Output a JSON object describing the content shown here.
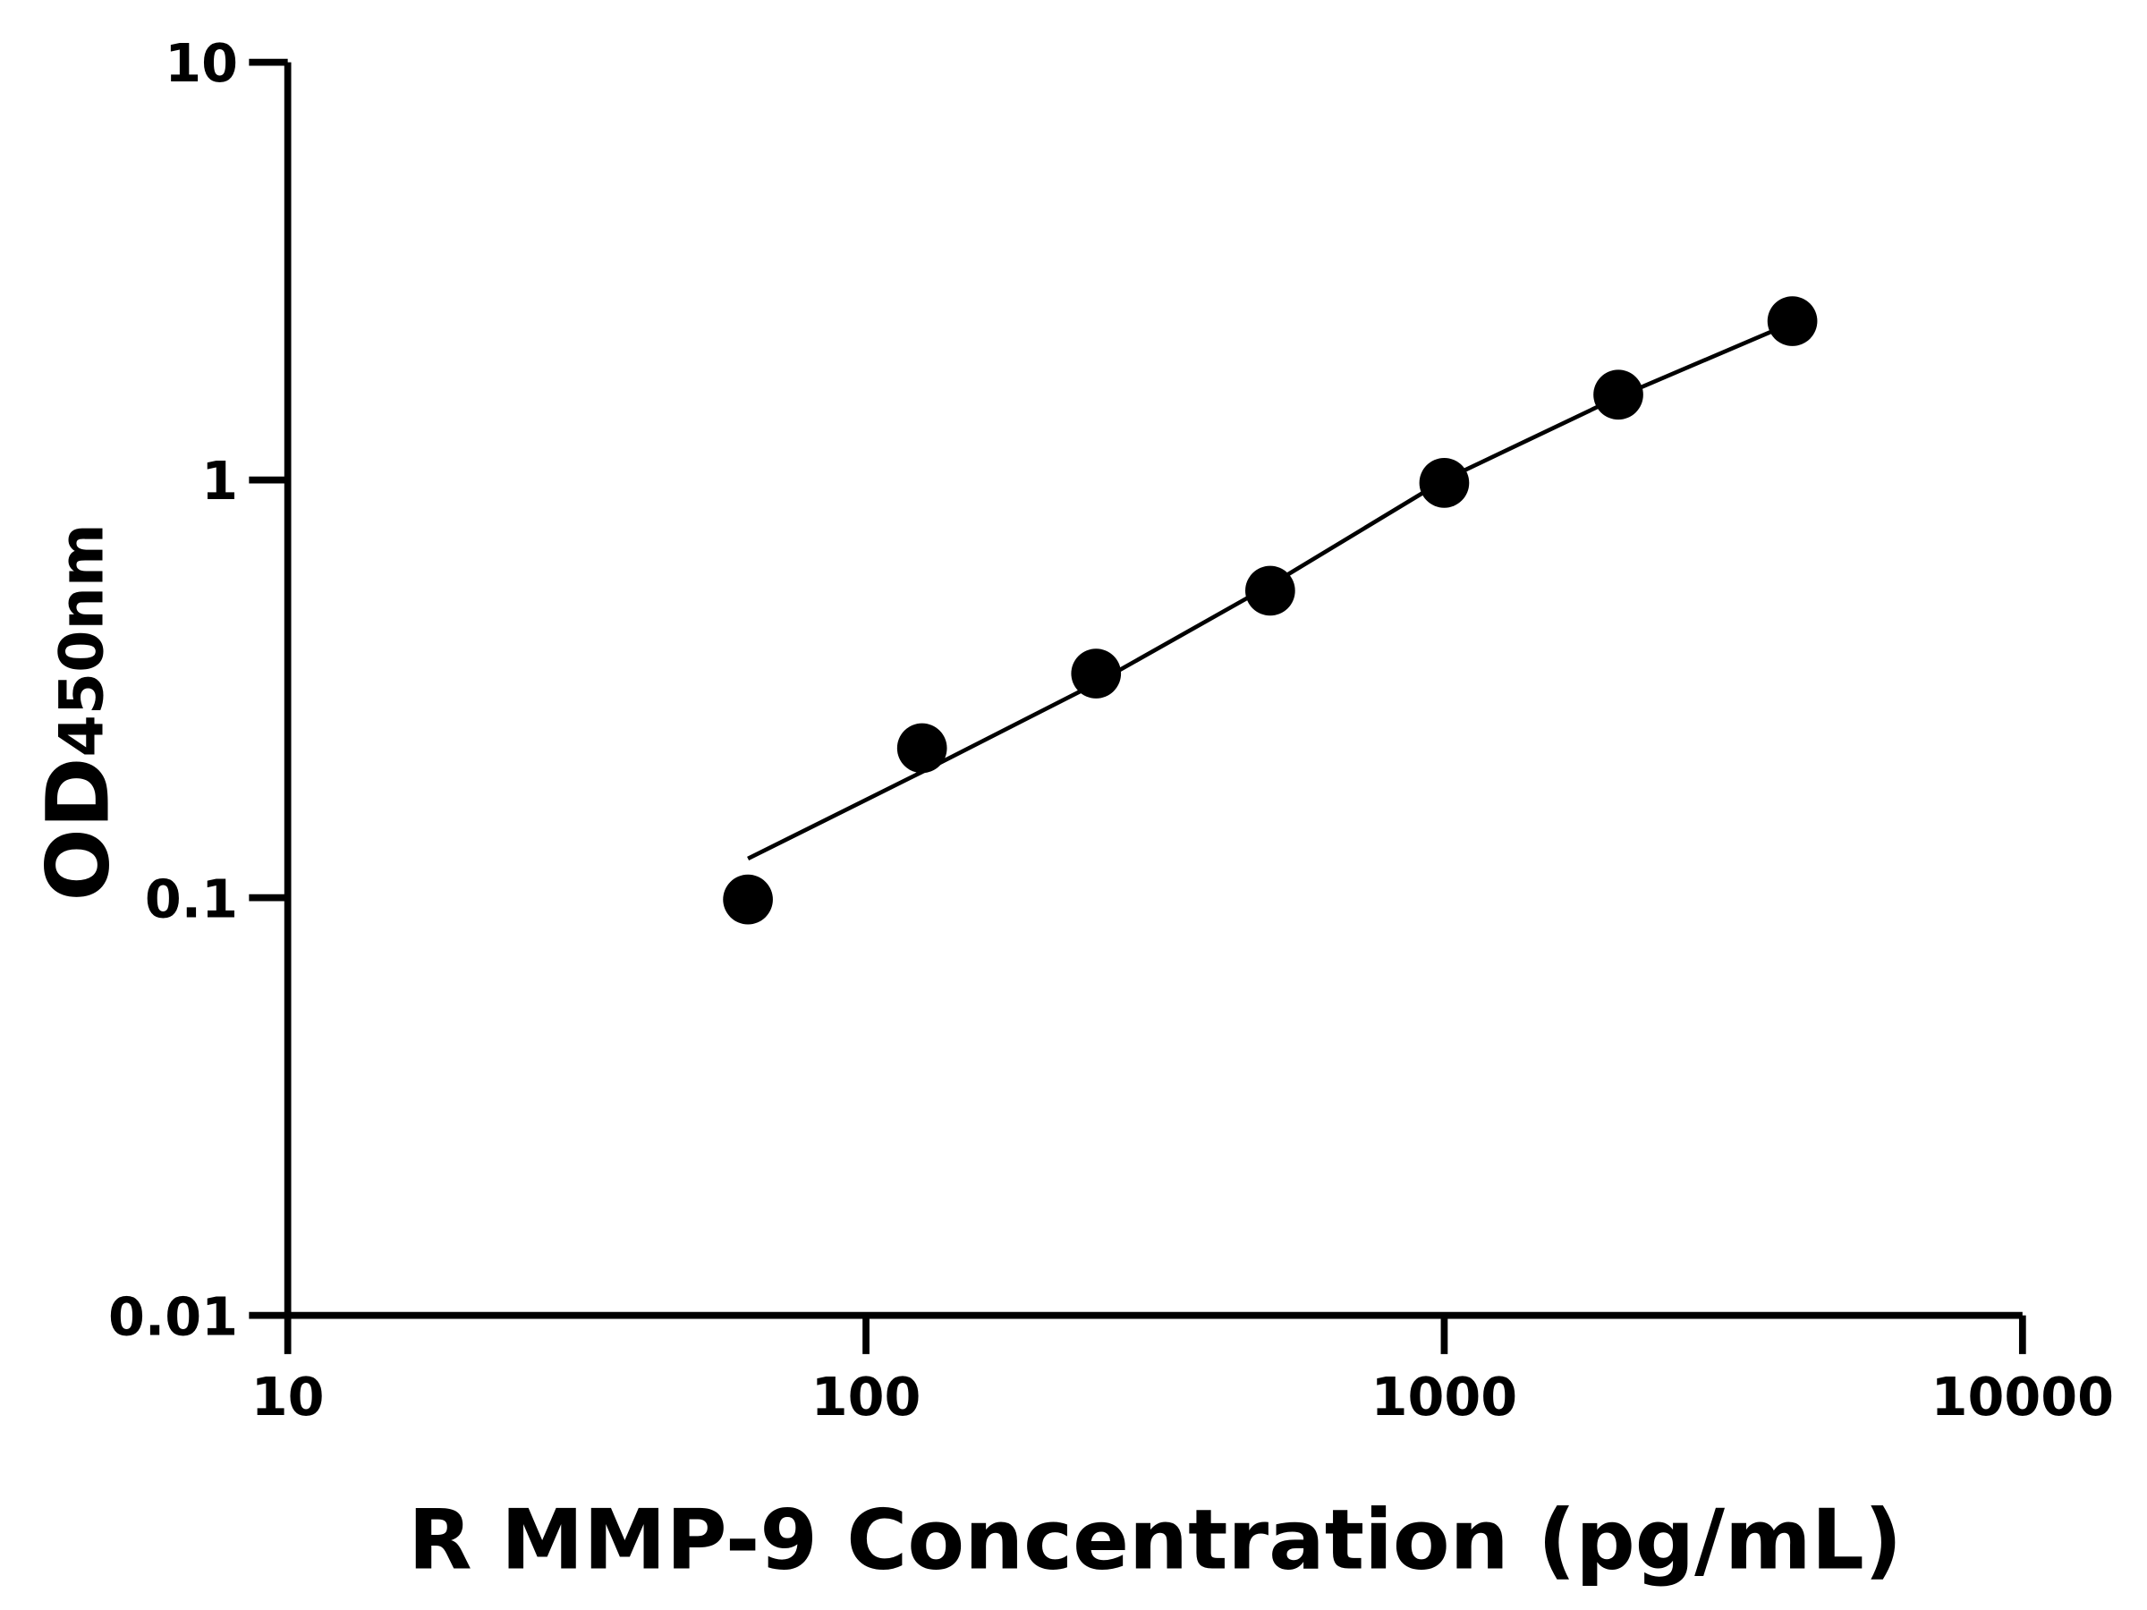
{
  "chart_data": {
    "type": "scatter",
    "xlabel": "R MMP-9 Concentration (pg/mL)",
    "ylabel": "OD",
    "ylabel_sub": "450nm",
    "xscale": "log",
    "yscale": "log",
    "xlim": [
      10,
      10000
    ],
    "ylim": [
      0.01,
      10
    ],
    "xticks": [
      10,
      100,
      1000,
      10000
    ],
    "yticks": [
      0.01,
      0.1,
      1,
      10
    ],
    "color": "#000000",
    "points": {
      "x": [
        62.5,
        125,
        250,
        500,
        1000,
        2000,
        4000
      ],
      "values": [
        0.099,
        0.228,
        0.344,
        0.543,
        0.984,
        1.6,
        2.4
      ]
    },
    "fit_curve": {
      "x": [
        62.5,
        125,
        250,
        500,
        1000,
        2000,
        4000
      ],
      "values": [
        0.124,
        0.2,
        0.326,
        0.56,
        1.0,
        1.58,
        2.38
      ]
    }
  }
}
